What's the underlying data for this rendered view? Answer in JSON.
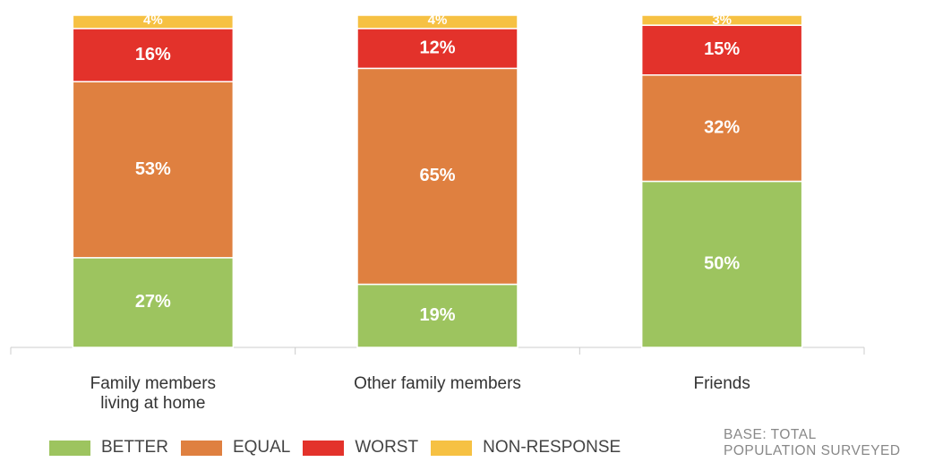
{
  "chart_data": {
    "type": "stacked_bar",
    "categories": [
      "Family members\nliving at home",
      "Other family members",
      "Friends"
    ],
    "ylim": [
      0,
      100
    ],
    "series": [
      {
        "name": "BETTER",
        "color": "#9dc45f",
        "values": [
          27,
          19,
          50
        ],
        "value_labels": [
          "27%",
          "19%",
          "50%"
        ]
      },
      {
        "name": "EQUAL",
        "color": "#df8040",
        "values": [
          53,
          65,
          32
        ],
        "value_labels": [
          "53%",
          "65%",
          "32%"
        ]
      },
      {
        "name": "WORST",
        "color": "#e3322b",
        "values": [
          16,
          12,
          15
        ],
        "value_labels": [
          "16%",
          "12%",
          "15%"
        ]
      },
      {
        "name": "NON-RESPONSE",
        "color": "#f6c143",
        "values": [
          4,
          4,
          3
        ],
        "value_labels": [
          "4%",
          "4%",
          "3%"
        ]
      }
    ],
    "note": "BASE:  TOTAL\nPOPULATION SURVEYED"
  }
}
